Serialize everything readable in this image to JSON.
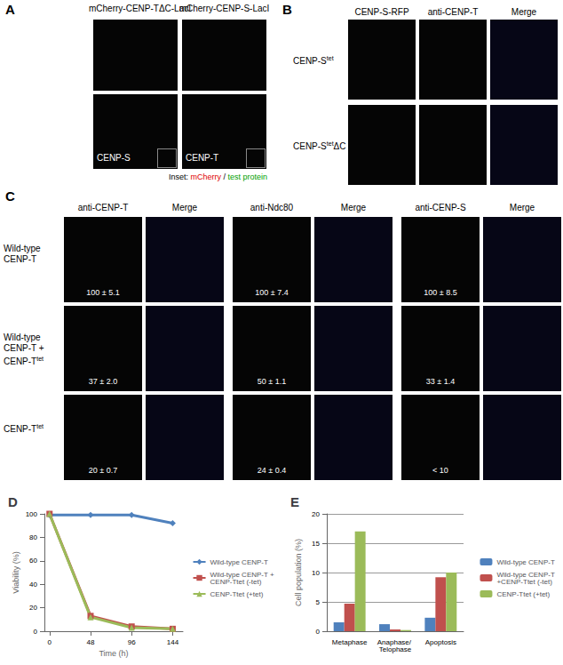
{
  "panels": {
    "A": {
      "label": "A",
      "columns": [
        "mCherry-CENP-TΔC-LacI",
        "mCherry-CENP-S-LacI"
      ],
      "bottom_labels": [
        "CENP-S",
        "CENP-T"
      ],
      "inset_caption": {
        "prefix": "Inset:",
        "red": "mCherry",
        "sep": "/",
        "green": "test protein"
      }
    },
    "B": {
      "label": "B",
      "columns": [
        "CENP-S-RFP",
        "anti-CENP-T",
        "Merge"
      ],
      "rows": [
        [
          {
            "t": "CENP-S"
          },
          {
            "sup": "tet"
          }
        ],
        [
          {
            "t": "CENP-S"
          },
          {
            "sup": "tet"
          },
          {
            "t": "ΔC"
          }
        ]
      ]
    },
    "C": {
      "label": "C",
      "columns": [
        "anti-CENP-T",
        "Merge",
        "anti-Ndc80",
        "Merge",
        "anti-CENP-S",
        "Merge"
      ],
      "rows": [
        [
          {
            "t": "Wild-type CENP-T"
          }
        ],
        [
          {
            "t": "Wild-type CENP-T + CENP-T"
          },
          {
            "sup": "tet"
          }
        ],
        [
          {
            "t": "CENP-T"
          },
          {
            "sup": "tet"
          }
        ]
      ],
      "values": [
        [
          "100 ± 5.1",
          "100 ± 7.4",
          "100 ± 8.5"
        ],
        [
          "37 ± 2.0",
          "50 ± 1.1",
          "33 ± 1.4"
        ],
        [
          "20 ± 0.7",
          "24 ± 0.4",
          "< 10"
        ]
      ]
    }
  },
  "chart_data": [
    {
      "type": "line",
      "title": "D",
      "x_label": "Time (h)",
      "y_label": "Viability (%)",
      "x": [
        0,
        48,
        96,
        144
      ],
      "series": [
        {
          "name": "Wild-type CENP-T",
          "color": "#4f81bd",
          "marker": "diamond",
          "values": [
            99,
            99,
            99,
            92
          ]
        },
        {
          "name": "Wild-type CENP-T + CENP-Ttet (-tet)",
          "color": "#c0504d",
          "marker": "square",
          "values": [
            100,
            13,
            4,
            2
          ]
        },
        {
          "name": "CENP-Ttet (+tet)",
          "color": "#9bbb59",
          "marker": "triangle",
          "values": [
            100,
            12,
            3,
            2
          ]
        }
      ],
      "xlim": [
        -6,
        156
      ],
      "xticks": [
        0,
        48,
        96,
        144
      ],
      "ylim": [
        0,
        100
      ],
      "yticks": [
        0,
        20,
        40,
        60,
        80,
        100
      ],
      "grid": false,
      "legend": "right"
    },
    {
      "type": "bar",
      "title": "E",
      "y_label": "Cell population (%)",
      "categories": [
        "Metaphase",
        "Anaphase/ Telophase",
        "Apoptosis"
      ],
      "series": [
        {
          "name": "Wild-type CENP-T",
          "color": "#4f81bd",
          "values": [
            1.5,
            1.2,
            2.3
          ]
        },
        {
          "name": "Wild-type CENP-T +CENP-Ttet (-tet)",
          "color": "#c0504d",
          "values": [
            4.7,
            0.3,
            9.2
          ]
        },
        {
          "name": "CENP-Ttet (+tet)",
          "color": "#9bbb59",
          "values": [
            17,
            0.2,
            10
          ]
        }
      ],
      "ylim": [
        0,
        20
      ],
      "yticks": [
        0,
        5,
        10,
        15,
        20
      ],
      "grid": true,
      "legend": "right"
    }
  ]
}
